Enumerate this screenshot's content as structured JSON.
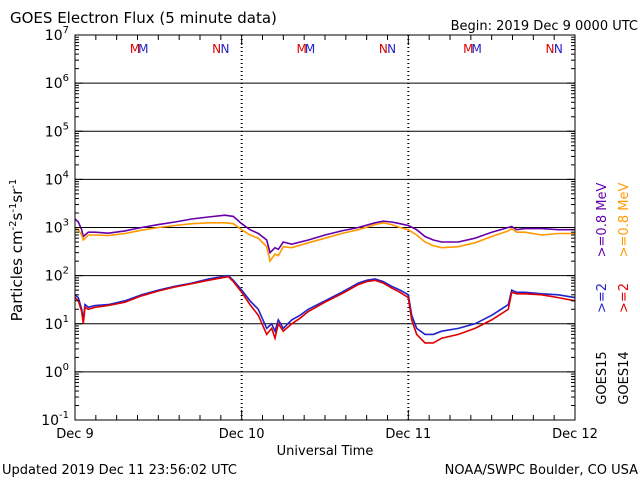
{
  "chart_data": {
    "type": "line",
    "title": "GOES Electron Flux (5 minute data)",
    "begin_label": "Begin: 2019 Dec 9 0000 UTC",
    "xlabel": "Universal Time",
    "ylabel_main": "Particles cm",
    "ylabel_exp1": "-2",
    "ylabel_mid1": "s",
    "ylabel_exp2": "-1",
    "ylabel_mid2": "sr",
    "ylabel_exp3": "-1",
    "updated_label": "Updated 2019 Dec 11 23:56:02 UTC",
    "credit_label": "NOAA/SWPC Boulder, CO USA",
    "x_ticks": [
      "Dec 9",
      "Dec 10",
      "Dec 11",
      "Dec 12"
    ],
    "xlim_days": [
      0,
      3
    ],
    "y_scale": "log",
    "ylim": [
      0.1,
      10000000
    ],
    "y_tick_bases": [
      "10",
      "10",
      "10",
      "10",
      "10",
      "10",
      "10",
      "10",
      "10"
    ],
    "y_tick_exps": [
      "-1",
      "0",
      "1",
      "2",
      "3",
      "4",
      "5",
      "6",
      "7"
    ],
    "threshold": 1000,
    "mn_markers": [
      {
        "text": "M",
        "color": "#dd0000",
        "day": 0.36
      },
      {
        "text": "M",
        "color": "#2222cc",
        "day": 0.41
      },
      {
        "text": "N",
        "color": "#dd0000",
        "day": 0.85
      },
      {
        "text": "N",
        "color": "#2222cc",
        "day": 0.9
      },
      {
        "text": "M",
        "color": "#dd0000",
        "day": 1.36
      },
      {
        "text": "M",
        "color": "#2222cc",
        "day": 1.41
      },
      {
        "text": "N",
        "color": "#dd0000",
        "day": 1.85
      },
      {
        "text": "N",
        "color": "#2222cc",
        "day": 1.9
      },
      {
        "text": "M",
        "color": "#dd0000",
        "day": 2.36
      },
      {
        "text": "M",
        "color": "#2222cc",
        "day": 2.41
      },
      {
        "text": "N",
        "color": "#dd0000",
        "day": 2.85
      },
      {
        "text": "N",
        "color": "#2222cc",
        "day": 2.9
      }
    ],
    "legend_right": [
      {
        "text": ">=0.8 MeV",
        "color": "#ff9900"
      },
      {
        "text": ">=0.8 MeV",
        "color": "#6600aa"
      },
      {
        "text": ">=2",
        "color": "#dd0000"
      },
      {
        "text": ">=2",
        "color": "#2222cc"
      },
      {
        "text": "GOES14",
        "color": "#000000"
      },
      {
        "text": "GOES15",
        "color": "#000000"
      }
    ],
    "series": [
      {
        "name": "GOES15 >=0.8 MeV",
        "color": "#6600aa",
        "x": [
          0,
          0.02,
          0.04,
          0.05,
          0.06,
          0.08,
          0.12,
          0.2,
          0.3,
          0.4,
          0.5,
          0.6,
          0.7,
          0.8,
          0.9,
          0.95,
          1.0,
          1.05,
          1.1,
          1.15,
          1.17,
          1.2,
          1.22,
          1.25,
          1.3,
          1.4,
          1.5,
          1.6,
          1.7,
          1.8,
          1.85,
          1.9,
          1.95,
          2.0,
          2.05,
          2.1,
          2.15,
          2.2,
          2.3,
          2.4,
          2.5,
          2.6,
          2.62,
          2.65,
          2.7,
          2.8,
          2.9,
          3.0
        ],
        "y": [
          1500,
          1300,
          900,
          650,
          700,
          800,
          800,
          760,
          850,
          1000,
          1150,
          1300,
          1500,
          1650,
          1800,
          1700,
          1200,
          900,
          750,
          550,
          300,
          380,
          350,
          500,
          450,
          550,
          700,
          850,
          1000,
          1250,
          1350,
          1300,
          1200,
          1100,
          900,
          650,
          550,
          500,
          500,
          600,
          800,
          1000,
          1050,
          900,
          950,
          950,
          900,
          900
        ]
      },
      {
        "name": "GOES14 >=0.8 MeV",
        "color": "#ff9900",
        "x": [
          0,
          0.02,
          0.04,
          0.05,
          0.06,
          0.08,
          0.12,
          0.2,
          0.3,
          0.4,
          0.5,
          0.6,
          0.7,
          0.8,
          0.9,
          0.95,
          1.0,
          1.05,
          1.1,
          1.15,
          1.17,
          1.2,
          1.22,
          1.25,
          1.3,
          1.4,
          1.5,
          1.6,
          1.7,
          1.8,
          1.85,
          1.9,
          1.95,
          2.0,
          2.05,
          2.1,
          2.15,
          2.2,
          2.3,
          2.4,
          2.5,
          2.6,
          2.62,
          2.65,
          2.7,
          2.8,
          2.9,
          3.0
        ],
        "y": [
          1000,
          900,
          700,
          550,
          600,
          700,
          700,
          680,
          750,
          880,
          1000,
          1100,
          1200,
          1250,
          1250,
          1200,
          900,
          700,
          600,
          400,
          200,
          280,
          260,
          400,
          380,
          480,
          600,
          750,
          900,
          1150,
          1250,
          1150,
          1000,
          900,
          700,
          500,
          420,
          380,
          400,
          480,
          650,
          850,
          950,
          800,
          800,
          700,
          750,
          750
        ]
      },
      {
        "name": "GOES15 >=2 MeV",
        "color": "#2222cc",
        "x": [
          0,
          0.02,
          0.04,
          0.05,
          0.06,
          0.08,
          0.12,
          0.2,
          0.3,
          0.4,
          0.5,
          0.6,
          0.7,
          0.8,
          0.88,
          0.92,
          0.95,
          1.0,
          1.05,
          1.1,
          1.15,
          1.18,
          1.2,
          1.22,
          1.25,
          1.3,
          1.35,
          1.4,
          1.5,
          1.6,
          1.7,
          1.75,
          1.8,
          1.85,
          1.9,
          1.95,
          2.0,
          2.02,
          2.05,
          2.1,
          2.15,
          2.2,
          2.3,
          2.4,
          2.5,
          2.6,
          2.62,
          2.65,
          2.7,
          2.8,
          2.9,
          3.0
        ],
        "y": [
          40,
          35,
          20,
          12,
          25,
          22,
          24,
          25,
          30,
          40,
          50,
          60,
          70,
          85,
          95,
          100,
          80,
          50,
          30,
          20,
          8,
          10,
          7,
          12,
          8,
          12,
          15,
          20,
          30,
          45,
          70,
          80,
          85,
          75,
          60,
          50,
          40,
          15,
          8,
          6,
          6,
          7,
          8,
          10,
          15,
          25,
          50,
          45,
          45,
          42,
          40,
          35
        ]
      },
      {
        "name": "GOES14 >=2 MeV",
        "color": "#dd0000",
        "x": [
          0,
          0.02,
          0.04,
          0.05,
          0.06,
          0.08,
          0.12,
          0.2,
          0.3,
          0.4,
          0.5,
          0.6,
          0.7,
          0.8,
          0.88,
          0.92,
          0.95,
          1.0,
          1.05,
          1.1,
          1.15,
          1.18,
          1.2,
          1.22,
          1.25,
          1.3,
          1.35,
          1.4,
          1.5,
          1.6,
          1.7,
          1.75,
          1.8,
          1.85,
          1.9,
          1.95,
          2.0,
          2.02,
          2.05,
          2.1,
          2.15,
          2.2,
          2.3,
          2.4,
          2.5,
          2.6,
          2.62,
          2.65,
          2.7,
          2.8,
          2.9,
          3.0
        ],
        "y": [
          35,
          30,
          18,
          10,
          22,
          20,
          22,
          24,
          28,
          38,
          48,
          58,
          68,
          80,
          90,
          95,
          75,
          45,
          25,
          15,
          6,
          8,
          5,
          10,
          7,
          10,
          13,
          18,
          28,
          42,
          65,
          75,
          80,
          70,
          55,
          45,
          35,
          12,
          6,
          4,
          4,
          5,
          6,
          8,
          12,
          20,
          45,
          42,
          42,
          40,
          35,
          30
        ]
      }
    ]
  }
}
